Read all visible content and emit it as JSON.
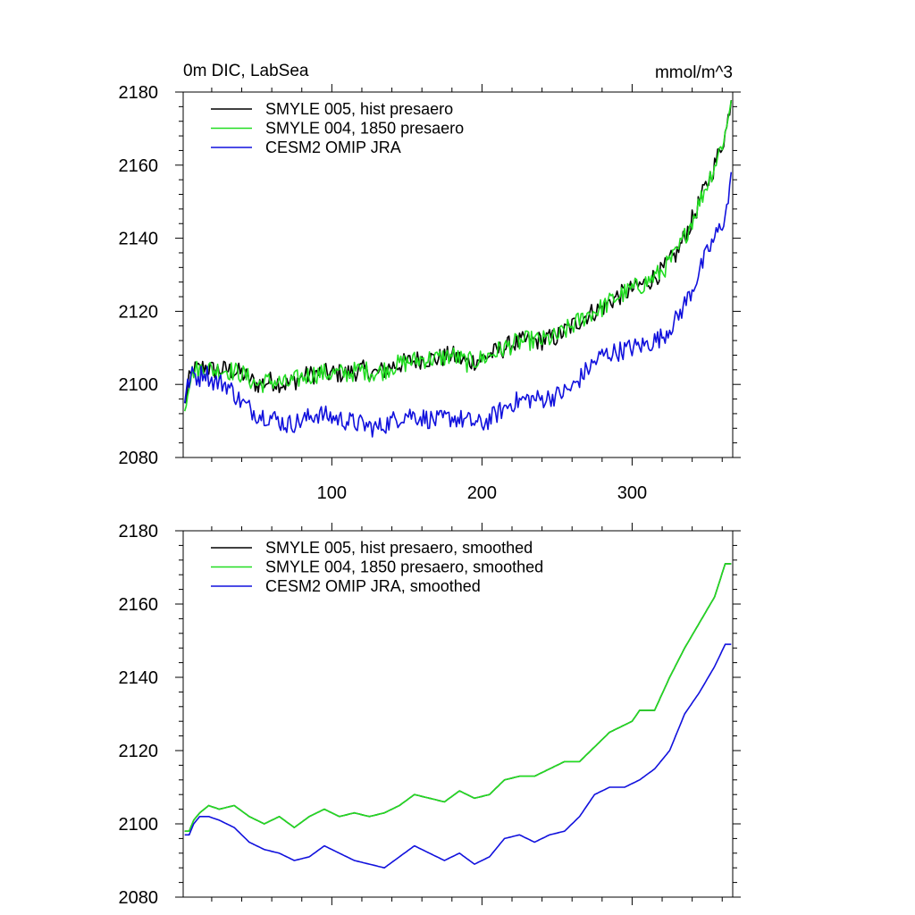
{
  "chart_data": [
    {
      "type": "line",
      "title": "0m DIC, LabSea",
      "units": "mmol/m^3",
      "xlim": [
        1,
        367
      ],
      "ylim": [
        2080,
        2180
      ],
      "xticks": [
        100,
        200,
        300
      ],
      "xtick_labels": [
        "100",
        "200",
        "300"
      ],
      "yticks": [
        2080,
        2100,
        2120,
        2140,
        2160,
        2180
      ],
      "ytick_labels": [
        "2080",
        "2100",
        "2120",
        "2140",
        "2160",
        "2180"
      ],
      "noise": true,
      "series": [
        {
          "name": "SMYLE 005, hist presaero",
          "color": "#000000",
          "x": [
            1,
            2,
            5,
            8,
            10,
            12,
            15,
            20,
            30,
            40,
            50,
            60,
            70,
            80,
            90,
            100,
            110,
            120,
            130,
            140,
            150,
            160,
            170,
            180,
            190,
            200,
            210,
            220,
            230,
            240,
            250,
            260,
            270,
            280,
            290,
            300,
            310,
            320,
            330,
            340,
            345,
            350,
            355,
            360,
            363,
            366
          ],
          "values": [
            2088,
            2094,
            2101,
            2104,
            2104,
            2104,
            2105,
            2104,
            2104,
            2103,
            2100,
            2101,
            2100,
            2102,
            2103,
            2103,
            2103,
            2104,
            2103,
            2105,
            2106,
            2107,
            2107,
            2108,
            2106,
            2107,
            2109,
            2111,
            2112,
            2112,
            2113,
            2116,
            2119,
            2121,
            2124,
            2126,
            2128,
            2131,
            2136,
            2145,
            2150,
            2155,
            2160,
            2166,
            2170,
            2179
          ]
        },
        {
          "name": "SMYLE 004, 1850 presaero",
          "color": "#22dd22",
          "x": [
            1,
            2,
            5,
            8,
            10,
            12,
            15,
            20,
            30,
            40,
            50,
            60,
            70,
            80,
            90,
            100,
            110,
            120,
            130,
            140,
            150,
            160,
            170,
            180,
            190,
            200,
            210,
            220,
            230,
            240,
            250,
            260,
            270,
            280,
            290,
            300,
            310,
            320,
            330,
            340,
            345,
            350,
            355,
            360,
            363,
            366
          ],
          "values": [
            2088,
            2094,
            2101,
            2104,
            2104,
            2104,
            2105,
            2104,
            2104,
            2103,
            2100,
            2101,
            2100,
            2102,
            2103,
            2103,
            2103,
            2104,
            2103,
            2105,
            2106,
            2107,
            2107,
            2108,
            2106,
            2107,
            2109,
            2111,
            2112,
            2112,
            2113,
            2116,
            2119,
            2121,
            2124,
            2126,
            2128,
            2131,
            2136,
            2145,
            2150,
            2155,
            2160,
            2166,
            2170,
            2179
          ]
        },
        {
          "name": "CESM2 OMIP JRA",
          "color": "#1111dd",
          "x": [
            1,
            2,
            5,
            8,
            10,
            12,
            15,
            20,
            30,
            40,
            50,
            60,
            70,
            80,
            90,
            100,
            110,
            120,
            130,
            140,
            150,
            160,
            170,
            180,
            190,
            200,
            210,
            220,
            230,
            240,
            250,
            260,
            270,
            280,
            290,
            300,
            310,
            320,
            330,
            340,
            345,
            350,
            355,
            360,
            363,
            366
          ],
          "values": [
            2092,
            2096,
            2101,
            2103,
            2102,
            2102,
            2104,
            2101,
            2100,
            2095,
            2092,
            2091,
            2089,
            2090,
            2092,
            2091,
            2090,
            2089,
            2088,
            2090,
            2092,
            2091,
            2090,
            2091,
            2090,
            2089,
            2092,
            2095,
            2096,
            2096,
            2097,
            2099,
            2104,
            2108,
            2109,
            2110,
            2111,
            2113,
            2118,
            2126,
            2131,
            2136,
            2140,
            2144,
            2148,
            2156
          ]
        }
      ]
    },
    {
      "type": "line",
      "xlim": [
        1,
        367
      ],
      "ylim": [
        2080,
        2180
      ],
      "xticks": [
        100,
        200,
        300
      ],
      "xtick_labels": [],
      "yticks": [
        2080,
        2100,
        2120,
        2140,
        2160,
        2180
      ],
      "ytick_labels": [
        "2080",
        "2100",
        "2120",
        "2140",
        "2160",
        "2180"
      ],
      "noise": false,
      "series": [
        {
          "name": "SMYLE 005, hist presaero, smoothed",
          "color": "#000000",
          "x": [
            5,
            8,
            12,
            18,
            25,
            35,
            45,
            55,
            65,
            75,
            85,
            95,
            105,
            115,
            125,
            135,
            145,
            155,
            165,
            175,
            185,
            195,
            205,
            215,
            225,
            235,
            245,
            255,
            265,
            275,
            285,
            295,
            300,
            305,
            315,
            325,
            335,
            345,
            355,
            362
          ],
          "values": [
            2098,
            2101,
            2103,
            2105,
            2104,
            2105,
            2102,
            2100,
            2102,
            2099,
            2102,
            2104,
            2102,
            2103,
            2102,
            2103,
            2105,
            2108,
            2107,
            2106,
            2109,
            2107,
            2108,
            2112,
            2113,
            2113,
            2115,
            2117,
            2117,
            2121,
            2125,
            2127,
            2128,
            2131,
            2131,
            2140,
            2148,
            2155,
            2162,
            2171
          ]
        },
        {
          "name": "SMYLE 004, 1850 presaero, smoothed",
          "color": "#22dd22",
          "x": [
            5,
            8,
            12,
            18,
            25,
            35,
            45,
            55,
            65,
            75,
            85,
            95,
            105,
            115,
            125,
            135,
            145,
            155,
            165,
            175,
            185,
            195,
            205,
            215,
            225,
            235,
            245,
            255,
            265,
            275,
            285,
            295,
            300,
            305,
            315,
            325,
            335,
            345,
            355,
            362
          ],
          "values": [
            2098,
            2101,
            2103,
            2105,
            2104,
            2105,
            2102,
            2100,
            2102,
            2099,
            2102,
            2104,
            2102,
            2103,
            2102,
            2103,
            2105,
            2108,
            2107,
            2106,
            2109,
            2107,
            2108,
            2112,
            2113,
            2113,
            2115,
            2117,
            2117,
            2121,
            2125,
            2127,
            2128,
            2131,
            2131,
            2140,
            2148,
            2155,
            2162,
            2171
          ]
        },
        {
          "name": "CESM2 OMIP JRA, smoothed",
          "color": "#1111dd",
          "x": [
            5,
            8,
            12,
            18,
            25,
            35,
            45,
            55,
            65,
            75,
            85,
            95,
            105,
            115,
            125,
            135,
            145,
            155,
            165,
            175,
            185,
            195,
            205,
            215,
            225,
            235,
            245,
            255,
            265,
            275,
            285,
            295,
            300,
            305,
            315,
            325,
            335,
            345,
            355,
            362
          ],
          "values": [
            2097,
            2100,
            2102,
            2102,
            2101,
            2099,
            2095,
            2093,
            2092,
            2090,
            2091,
            2094,
            2092,
            2090,
            2089,
            2088,
            2091,
            2094,
            2092,
            2090,
            2092,
            2089,
            2091,
            2096,
            2097,
            2095,
            2097,
            2098,
            2102,
            2108,
            2110,
            2110,
            2111,
            2112,
            2115,
            2120,
            2130,
            2136,
            2143,
            2149
          ]
        }
      ]
    }
  ]
}
